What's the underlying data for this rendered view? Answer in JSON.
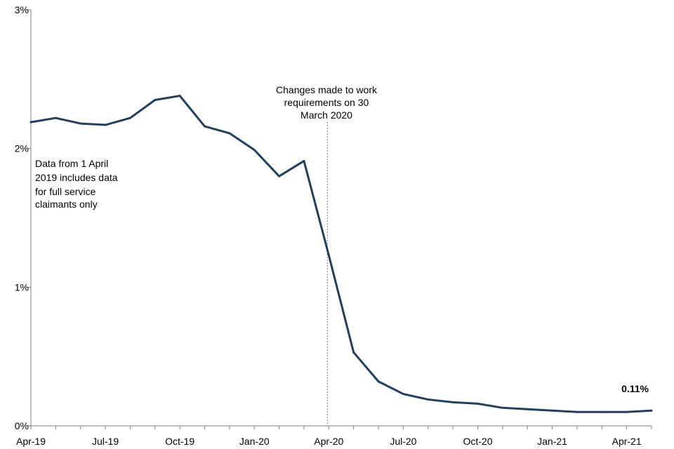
{
  "chart_data": {
    "type": "line",
    "title": "",
    "xlabel": "",
    "ylabel": "",
    "x": [
      "Apr-19",
      "May-19",
      "Jun-19",
      "Jul-19",
      "Aug-19",
      "Sep-19",
      "Oct-19",
      "Nov-19",
      "Dec-19",
      "Jan-20",
      "Feb-20",
      "Mar-20",
      "Apr-20",
      "May-20",
      "Jun-20",
      "Jul-20",
      "Aug-20",
      "Sep-20",
      "Oct-20",
      "Nov-20",
      "Dec-20",
      "Jan-21",
      "Feb-21",
      "Mar-21",
      "Apr-21",
      "May-21"
    ],
    "x_tick_labels": [
      "Apr-19",
      "Jul-19",
      "Oct-19",
      "Jan-20",
      "Apr-20",
      "Jul-20",
      "Oct-20",
      "Jan-21",
      "Apr-21"
    ],
    "y_tick_labels": [
      "0%",
      "1%",
      "2%",
      "3%"
    ],
    "ylim": [
      0,
      3
    ],
    "grid": false,
    "series": [
      {
        "color": "#1f3f63",
        "values": [
          2.19,
          2.22,
          2.18,
          2.17,
          2.22,
          2.35,
          2.38,
          2.16,
          2.11,
          1.99,
          1.8,
          1.91,
          1.23,
          0.53,
          0.32,
          0.23,
          0.19,
          0.17,
          0.16,
          0.13,
          0.12,
          0.11,
          0.1,
          0.1,
          0.1,
          0.11
        ]
      }
    ],
    "annotations": {
      "service_note": [
        "Data from 1 April",
        "2019 includes data",
        "for full service",
        "claimants only"
      ],
      "work_requirements": [
        "Changes made to work",
        "requirements on 30",
        "March 2020"
      ],
      "end_value": "0.11%"
    }
  }
}
